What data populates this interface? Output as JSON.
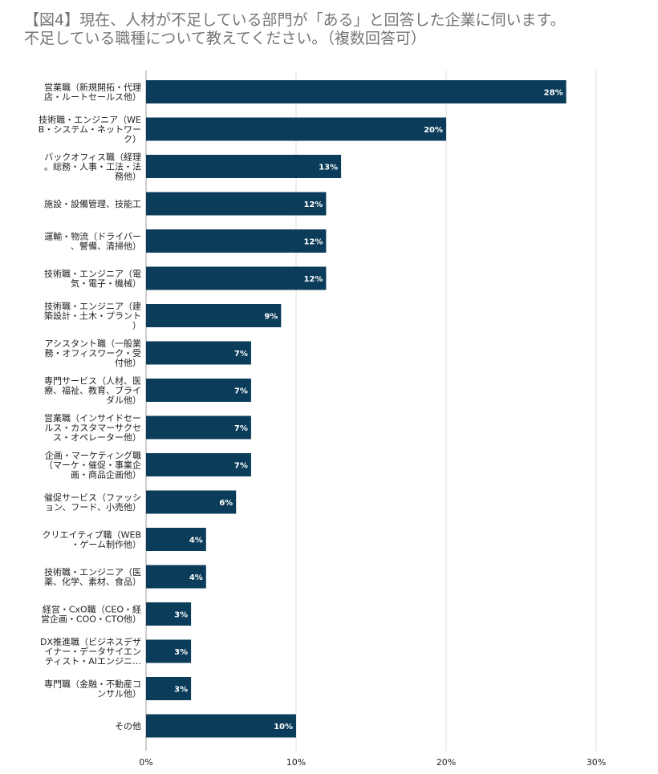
{
  "chart_data": {
    "type": "bar",
    "orientation": "horizontal",
    "title_lines": [
      "【図4】現在、人材が不足している部門が「ある」と回答した企業に伺います。",
      "不足している職種について教えてください。（複数回答可）"
    ],
    "categories": [
      [
        "営業職（新規開拓・代理",
        "店・ルートセールス他）"
      ],
      [
        "技術職・エンジニア（WE",
        "B・システム・ネットワー",
        "ク）"
      ],
      [
        "バックオフィス職（経理",
        "。総務・人事・工法・法",
        "務他）"
      ],
      [
        "施設・設備管理、技能工"
      ],
      [
        "運輸・物流（ドライバー",
        "、警備、清掃他）"
      ],
      [
        "技術職・エンジニア（電",
        "気・電子・機械）"
      ],
      [
        "技術職・エンジニア（建",
        "築設計・土木・プラント",
        "）"
      ],
      [
        "アシスタント職（一般業",
        "務・オフィスワーク・受",
        "付他）"
      ],
      [
        "専門サービス（人材、医",
        "療、福祉、教育、ブライ",
        "ダル他）"
      ],
      [
        "営業職（インサイドセー",
        "ルス・カスタマーサクセ",
        "ス・オペレーター他）"
      ],
      [
        "企画・マーケティング職",
        "（マーケ・催促・事業企",
        "画・商品企画他）"
      ],
      [
        "催促サービス（ファッシ",
        "ョン、フード、小売他）"
      ],
      [
        "クリエイティブ職（WEB",
        "・ゲーム制作他）"
      ],
      [
        "技術職・エンジニア（医",
        "薬、化学、素材、食品）"
      ],
      [
        "経営・CxO職（CEO・経",
        "営企画・COO・CTO他）"
      ],
      [
        "DX推進職（ビジネスデザ",
        "イナー・データサイエン",
        "ティスト・AIエンジニ…"
      ],
      [
        "専門職（金融・不動産コ",
        "ンサル他）"
      ],
      [
        "その他"
      ]
    ],
    "values": [
      28,
      20,
      13,
      12,
      12,
      12,
      9,
      7,
      7,
      7,
      7,
      6,
      4,
      4,
      3,
      3,
      3,
      10
    ],
    "value_labels": [
      "28%",
      "20%",
      "13%",
      "12%",
      "12%",
      "12%",
      "9%",
      "7%",
      "7%",
      "7%",
      "7%",
      "6%",
      "4%",
      "4%",
      "3%",
      "3%",
      "3%",
      "10%"
    ],
    "xlim": [
      0,
      30
    ],
    "xticks": [
      "0%",
      "10%",
      "20%",
      "30%"
    ],
    "grid": true,
    "bar_color": "#0b3c5a"
  }
}
